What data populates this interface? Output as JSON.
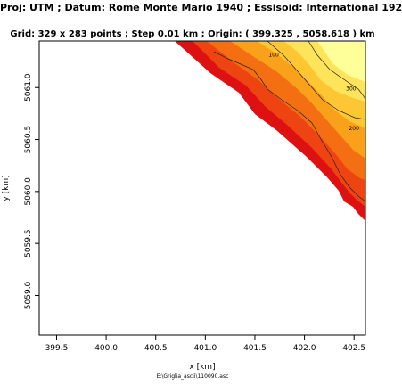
{
  "chart_data": {
    "type": "heatmap",
    "title": "Proj: UTM ; Datum: Rome Monte Mario 1940 ; Essisoid: International 192",
    "subtitle": "Grid: 329 x 283 points ; Step 0.01 km ; Origin: ( 399.325 , 5058.618 ) km",
    "xlabel": "x [km]",
    "ylabel": "y [km]",
    "xlim": [
      399.325,
      402.615
    ],
    "ylim": [
      5058.618,
      5061.448
    ],
    "x_ticks": [
      399.5,
      400.0,
      400.5,
      401.0,
      401.5,
      402.0,
      402.5
    ],
    "x_tick_labels": [
      "399.5",
      "400.0",
      "400.5",
      "401.0",
      "401.5",
      "402.0",
      "402.5"
    ],
    "y_ticks": [
      5059.0,
      5059.5,
      5060.0,
      5060.5,
      5061.0
    ],
    "y_tick_labels": [
      "5059.0",
      "5059.5",
      "5060.0",
      "5060.5",
      "5061.0"
    ],
    "contour_labels": [
      {
        "label": "100",
        "x": 401.69,
        "y": 5061.3
      },
      {
        "label": "300",
        "x": 402.47,
        "y": 5060.97
      },
      {
        "label": "200",
        "x": 402.5,
        "y": 5060.59
      }
    ],
    "color_bands": [
      {
        "name": "band-1",
        "color": "#dd1111"
      },
      {
        "name": "band-2",
        "color": "#ee4411"
      },
      {
        "name": "band-3",
        "color": "#f36f11"
      },
      {
        "name": "band-4",
        "color": "#f9a11a"
      },
      {
        "name": "band-5",
        "color": "#fcc733"
      },
      {
        "name": "band-6",
        "color": "#fde45a"
      },
      {
        "name": "band-7",
        "color": "#ffff99"
      }
    ],
    "grid": false,
    "legend": "none"
  },
  "footer": {
    "filename": "E:\\Griglia_ascii\\110090.asc"
  }
}
